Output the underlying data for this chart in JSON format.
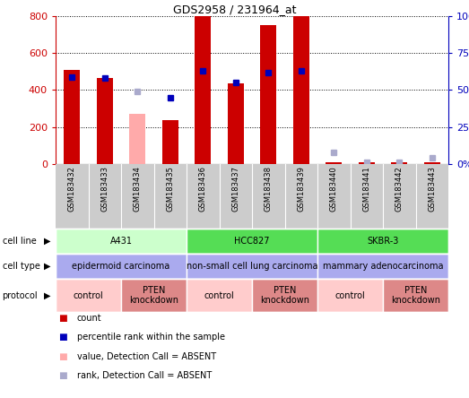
{
  "title": "GDS2958 / 231964_at",
  "samples": [
    "GSM183432",
    "GSM183433",
    "GSM183434",
    "GSM183435",
    "GSM183436",
    "GSM183437",
    "GSM183438",
    "GSM183439",
    "GSM183440",
    "GSM183441",
    "GSM183442",
    "GSM183443"
  ],
  "count_values": [
    510,
    465,
    null,
    238,
    800,
    435,
    750,
    800,
    10,
    10,
    10,
    10
  ],
  "count_absent": [
    null,
    null,
    270,
    null,
    null,
    null,
    null,
    null,
    null,
    null,
    null,
    null
  ],
  "rank_values": [
    59,
    58,
    null,
    45,
    63,
    55,
    62,
    63,
    null,
    null,
    null,
    null
  ],
  "rank_absent": [
    null,
    null,
    49,
    null,
    null,
    null,
    null,
    null,
    8,
    1.5,
    1.5,
    4
  ],
  "count_color": "#cc0000",
  "count_absent_color": "#ffaaaa",
  "rank_color": "#0000bb",
  "rank_absent_color": "#aaaacc",
  "ylim_left": [
    0,
    800
  ],
  "ylim_right": [
    0,
    100
  ],
  "yticks_left": [
    0,
    200,
    400,
    600,
    800
  ],
  "yticks_right": [
    0,
    25,
    50,
    75,
    100
  ],
  "ytick_labels_left": [
    "0",
    "200",
    "400",
    "600",
    "800"
  ],
  "ytick_labels_right": [
    "0%",
    "25%",
    "50%",
    "75%",
    "100%"
  ],
  "cell_line_groups": [
    {
      "label": "A431",
      "start": 0,
      "end": 4,
      "color": "#ccffcc"
    },
    {
      "label": "HCC827",
      "start": 4,
      "end": 8,
      "color": "#55dd55"
    },
    {
      "label": "SKBR-3",
      "start": 8,
      "end": 12,
      "color": "#55dd55"
    }
  ],
  "cell_type_groups": [
    {
      "label": "epidermoid carcinoma",
      "start": 0,
      "end": 4,
      "color": "#aaaaee"
    },
    {
      "label": "non-small cell lung carcinoma",
      "start": 4,
      "end": 8,
      "color": "#aaaaee"
    },
    {
      "label": "mammary adenocarcinoma",
      "start": 8,
      "end": 12,
      "color": "#aaaaee"
    }
  ],
  "protocol_groups": [
    {
      "label": "control",
      "start": 0,
      "end": 2,
      "color": "#ffcccc"
    },
    {
      "label": "PTEN\nknockdown",
      "start": 2,
      "end": 4,
      "color": "#dd8888"
    },
    {
      "label": "control",
      "start": 4,
      "end": 6,
      "color": "#ffcccc"
    },
    {
      "label": "PTEN\nknockdown",
      "start": 6,
      "end": 8,
      "color": "#dd8888"
    },
    {
      "label": "control",
      "start": 8,
      "end": 10,
      "color": "#ffcccc"
    },
    {
      "label": "PTEN\nknockdown",
      "start": 10,
      "end": 12,
      "color": "#dd8888"
    }
  ],
  "row_labels": [
    "cell line",
    "cell type",
    "protocol"
  ],
  "legend_items": [
    {
      "color": "#cc0000",
      "label": "count"
    },
    {
      "color": "#0000bb",
      "label": "percentile rank within the sample"
    },
    {
      "color": "#ffaaaa",
      "label": "value, Detection Call = ABSENT"
    },
    {
      "color": "#aaaacc",
      "label": "rank, Detection Call = ABSENT"
    }
  ]
}
